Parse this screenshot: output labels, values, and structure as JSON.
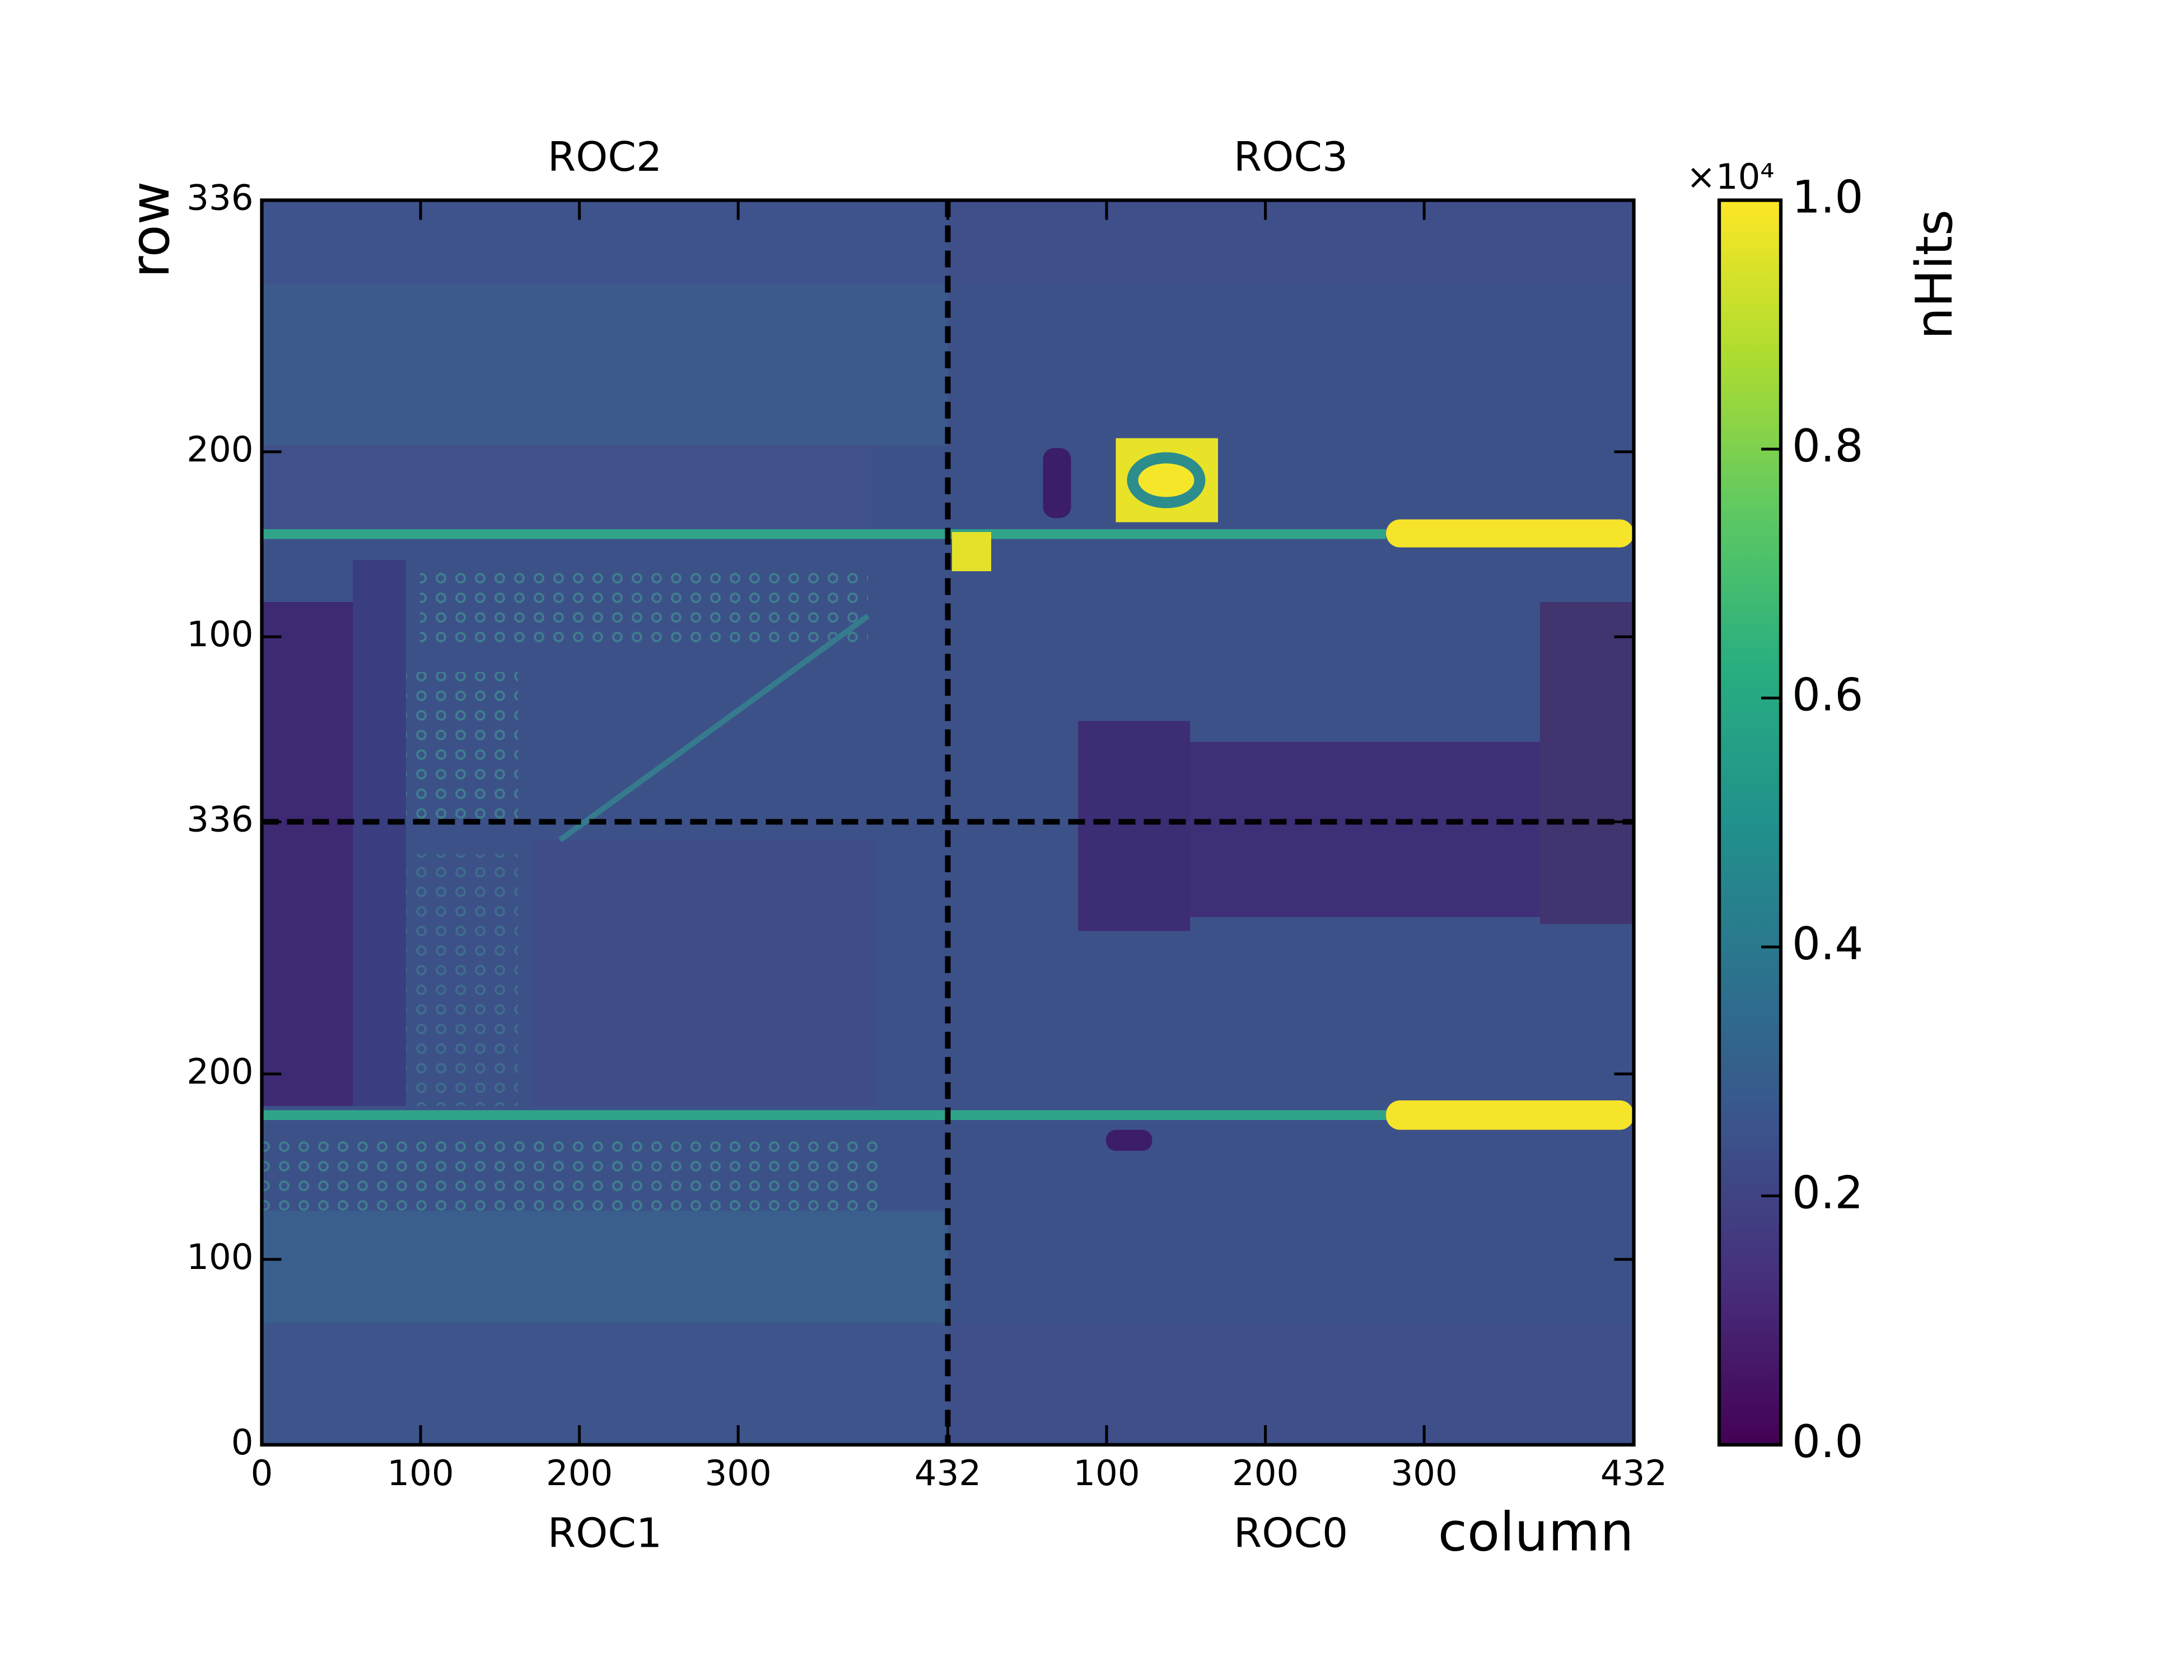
{
  "chart_data": {
    "type": "heatmap",
    "xlabel": "column",
    "ylabel": "row",
    "top_titles": [
      "ROC2",
      "ROC3"
    ],
    "bottom_titles": [
      "ROC1",
      "ROC0"
    ],
    "xaxes": [
      {
        "xlim": [
          0,
          432
        ],
        "xticks": [
          0,
          100,
          200,
          300,
          432
        ]
      },
      {
        "xlim": [
          0,
          432
        ],
        "xticks": [
          100,
          200,
          300,
          432
        ]
      }
    ],
    "yaxes": [
      {
        "ylim": [
          0,
          336
        ],
        "yticks": [
          0,
          100,
          200,
          336
        ]
      },
      {
        "ylim": [
          0,
          336
        ],
        "yticks": [
          100,
          200,
          336
        ]
      }
    ],
    "colorbar_label": "nHits",
    "colorbar_multiplier": "×10⁴",
    "zlim": [
      0,
      1
    ],
    "zticks": [
      {
        "value": 0,
        "label": "0.0"
      },
      0.2,
      0.4,
      0.6,
      0.8,
      {
        "value": 1,
        "label": "1.0"
      }
    ],
    "colormap": "viridis"
  }
}
